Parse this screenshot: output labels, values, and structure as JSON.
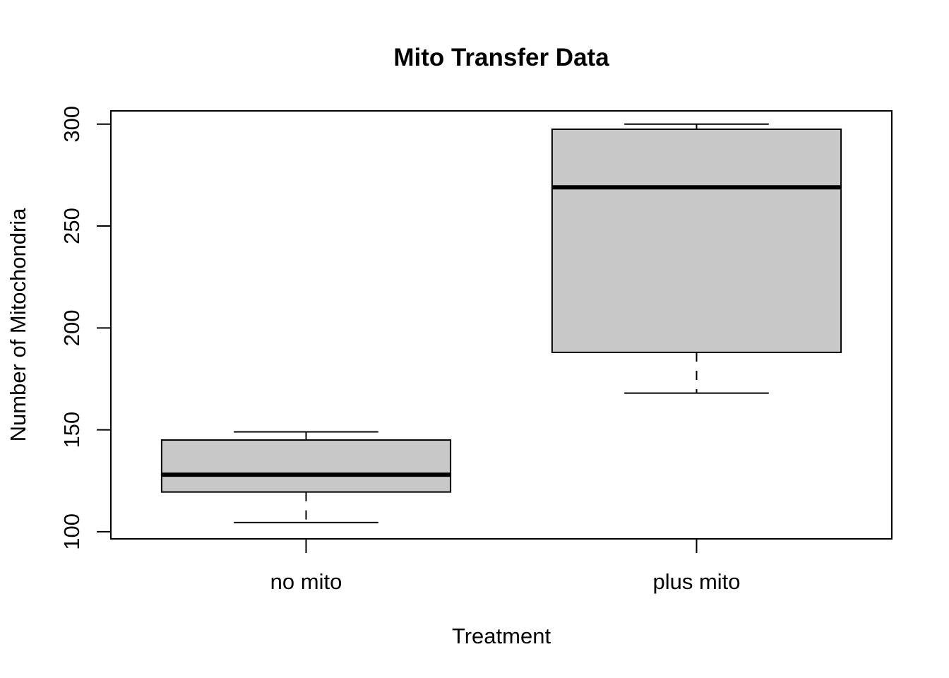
{
  "chart_data": {
    "type": "boxplot",
    "title": "Mito Transfer Data",
    "xlabel": "Treatment",
    "ylabel": "Number of Mitochondria",
    "ylim": [
      96.5,
      306.5
    ],
    "yticks": [
      100,
      150,
      200,
      250,
      300
    ],
    "categories": [
      "no mito",
      "plus mito"
    ],
    "boxes": [
      {
        "category": "no mito",
        "min": 104.5,
        "q1": 119.5,
        "median": 128,
        "q3": 145,
        "max": 149
      },
      {
        "category": "plus mito",
        "min": 168,
        "q1": 188,
        "median": 269,
        "q3": 297.5,
        "max": 300
      }
    ],
    "box_fill": "#c8c8c8",
    "grid": false,
    "legend": "none"
  }
}
